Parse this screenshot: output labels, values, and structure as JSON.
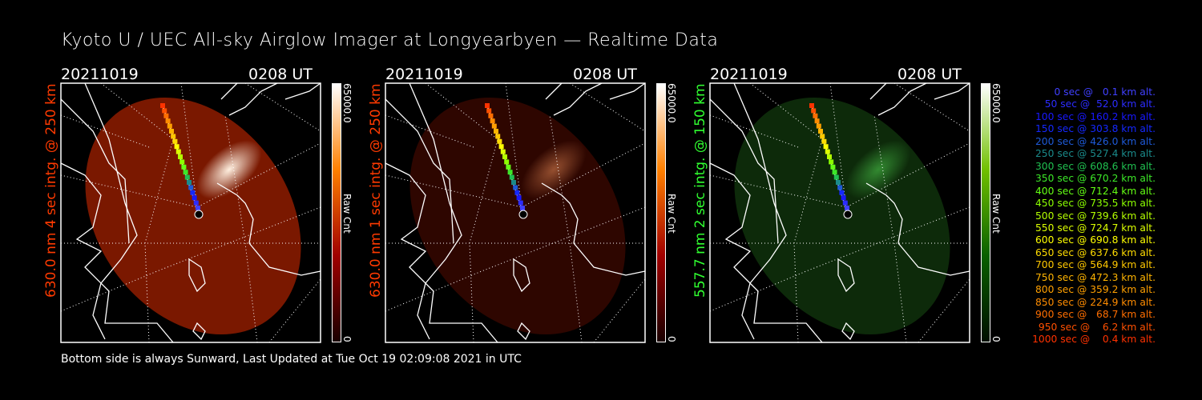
{
  "title": "Kyoto U / UEC All-sky Airglow Imager at Longyearbyen — Realtime Data",
  "footer": "Bottom side is always Sunward, Last Updated at Tue Oct 19 02:09:08 2021 in UTC",
  "panels": [
    {
      "date": "20211019",
      "time": "0208 UT",
      "label": "630.0 nm 4 sec intg. @ 250 km",
      "label_color": "#ff3a00",
      "cbar_max": "65000.0",
      "cbar_min": "0",
      "cbar_title": "Raw Cnt",
      "palette": [
        "#1a0000",
        "#a00000",
        "#ff8000",
        "#ffffff"
      ],
      "fill": "#7a1800",
      "blob": "#fff0e0",
      "blob_intensity": 1.0
    },
    {
      "date": "20211019",
      "time": "0208 UT",
      "label": "630.0 nm 1 sec intg. @ 250 km",
      "label_color": "#ff3a00",
      "cbar_max": "65000.0",
      "cbar_min": "0",
      "cbar_title": "Raw Cnt",
      "palette": [
        "#1a0000",
        "#a00000",
        "#ff8000",
        "#ffffff"
      ],
      "fill": "#2e0600",
      "blob": "#ff9a60",
      "blob_intensity": 0.5
    },
    {
      "date": "20211019",
      "time": "0208 UT",
      "label": "557.7 nm 2 sec intg. @ 150 km",
      "label_color": "#30ff30",
      "cbar_max": "65000.0",
      "cbar_min": "0",
      "cbar_title": "Raw Cnt",
      "palette": [
        "#001000",
        "#0a6000",
        "#70c000",
        "#ffffff"
      ],
      "fill": "#0d2a0a",
      "blob": "#60ff60",
      "blob_intensity": 0.45
    }
  ],
  "trajectory": [
    {
      "text": "0 sec @   0.1 km alt.",
      "color": "#4040ff"
    },
    {
      "text": "50 sec @  52.0 km alt.",
      "color": "#2c2cff"
    },
    {
      "text": "100 sec @ 160.2 km alt.",
      "color": "#1818ff"
    },
    {
      "text": "150 sec @ 303.8 km alt.",
      "color": "#1428ff"
    },
    {
      "text": "200 sec @ 426.0 km alt.",
      "color": "#1e5ad8"
    },
    {
      "text": "250 sec @ 527.4 km alt.",
      "color": "#1a8a8a"
    },
    {
      "text": "300 sec @ 608.6 km alt.",
      "color": "#20c050"
    },
    {
      "text": "350 sec @ 670.2 km alt.",
      "color": "#3ce828"
    },
    {
      "text": "400 sec @ 712.4 km alt.",
      "color": "#64ff14"
    },
    {
      "text": "450 sec @ 735.5 km alt.",
      "color": "#8cff00"
    },
    {
      "text": "500 sec @ 739.6 km alt.",
      "color": "#b4ff00"
    },
    {
      "text": "550 sec @ 724.7 km alt.",
      "color": "#dcff00"
    },
    {
      "text": "600 sec @ 690.8 km alt.",
      "color": "#ffff00"
    },
    {
      "text": "650 sec @ 637.6 km alt.",
      "color": "#ffdc00"
    },
    {
      "text": "700 sec @ 564.9 km alt.",
      "color": "#ffc800"
    },
    {
      "text": "750 sec @ 472.3 km alt.",
      "color": "#ffb400"
    },
    {
      "text": "800 sec @ 359.2 km alt.",
      "color": "#ffa000"
    },
    {
      "text": "850 sec @ 224.9 km alt.",
      "color": "#ff8c00"
    },
    {
      "text": "900 sec @   68.7 km alt.",
      "color": "#ff6e00"
    },
    {
      "text": "950 sec @    6.2 km alt.",
      "color": "#ff5000"
    },
    {
      "text": "1000 sec @    0.4 km alt.",
      "color": "#ff3200"
    }
  ]
}
